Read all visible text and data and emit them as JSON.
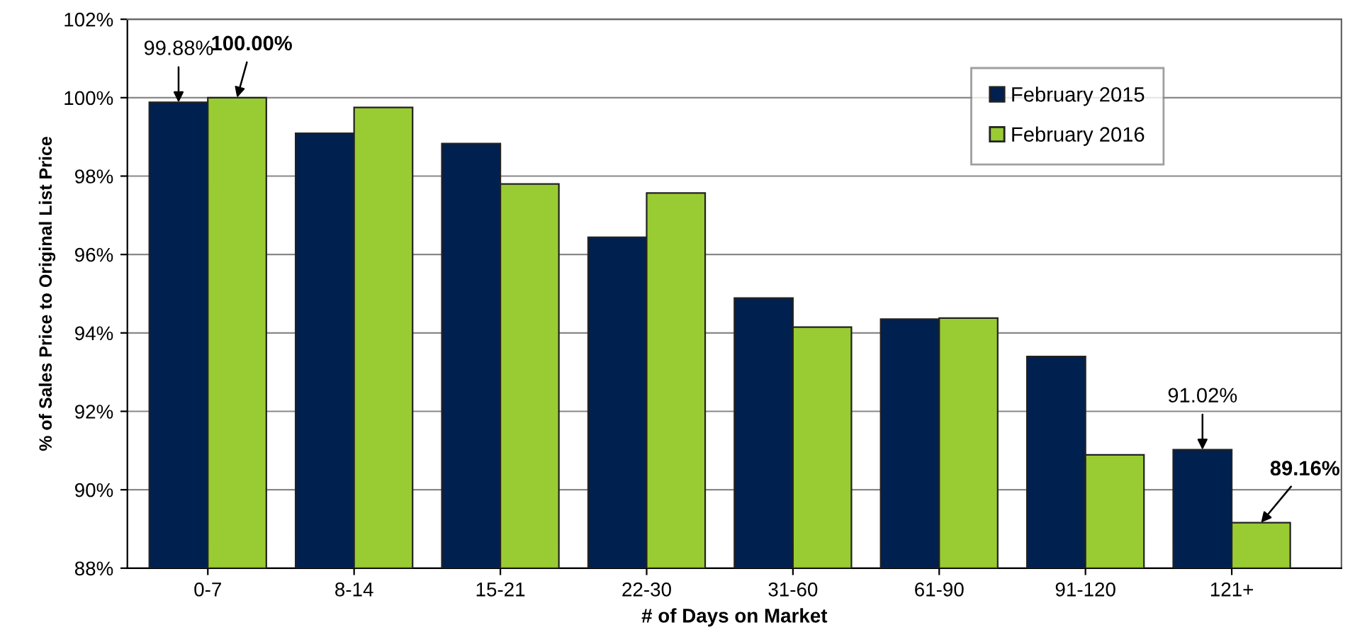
{
  "chart_data": {
    "type": "bar",
    "xlabel": "# of Days on Market",
    "ylabel": "% of Sales Price to Original List Price",
    "categories": [
      "0-7",
      "8-14",
      "15-21",
      "22-30",
      "31-60",
      "61-90",
      "91-120",
      "121+"
    ],
    "series": [
      {
        "name": "February 2015",
        "color": "#002050",
        "values": [
          99.88,
          99.09,
          98.83,
          96.44,
          94.89,
          94.35,
          93.4,
          91.02
        ]
      },
      {
        "name": "February 2016",
        "color": "#99cc33",
        "values": [
          100.0,
          99.75,
          97.8,
          97.57,
          94.15,
          94.38,
          90.89,
          89.16
        ]
      }
    ],
    "ylim": [
      88,
      102
    ],
    "yticks": [
      {
        "value": 88,
        "label": "88%"
      },
      {
        "value": 90,
        "label": "90%"
      },
      {
        "value": 92,
        "label": "92%"
      },
      {
        "value": 94,
        "label": "94%"
      },
      {
        "value": 96,
        "label": "96%"
      },
      {
        "value": 98,
        "label": "98%"
      },
      {
        "value": 100,
        "label": "100%"
      },
      {
        "value": 102,
        "label": "102%"
      }
    ],
    "grid": "y",
    "legend": "top right",
    "annotations": [
      {
        "text": "99.88%",
        "x": "0-7",
        "y": 99.88
      },
      {
        "text": "100.00%",
        "x": "0-7",
        "y": 100.0
      },
      {
        "text": "91.02%",
        "x": "121+",
        "y": 91.02
      },
      {
        "text": "89.16%",
        "x": "121+",
        "y": 89.16
      }
    ]
  }
}
